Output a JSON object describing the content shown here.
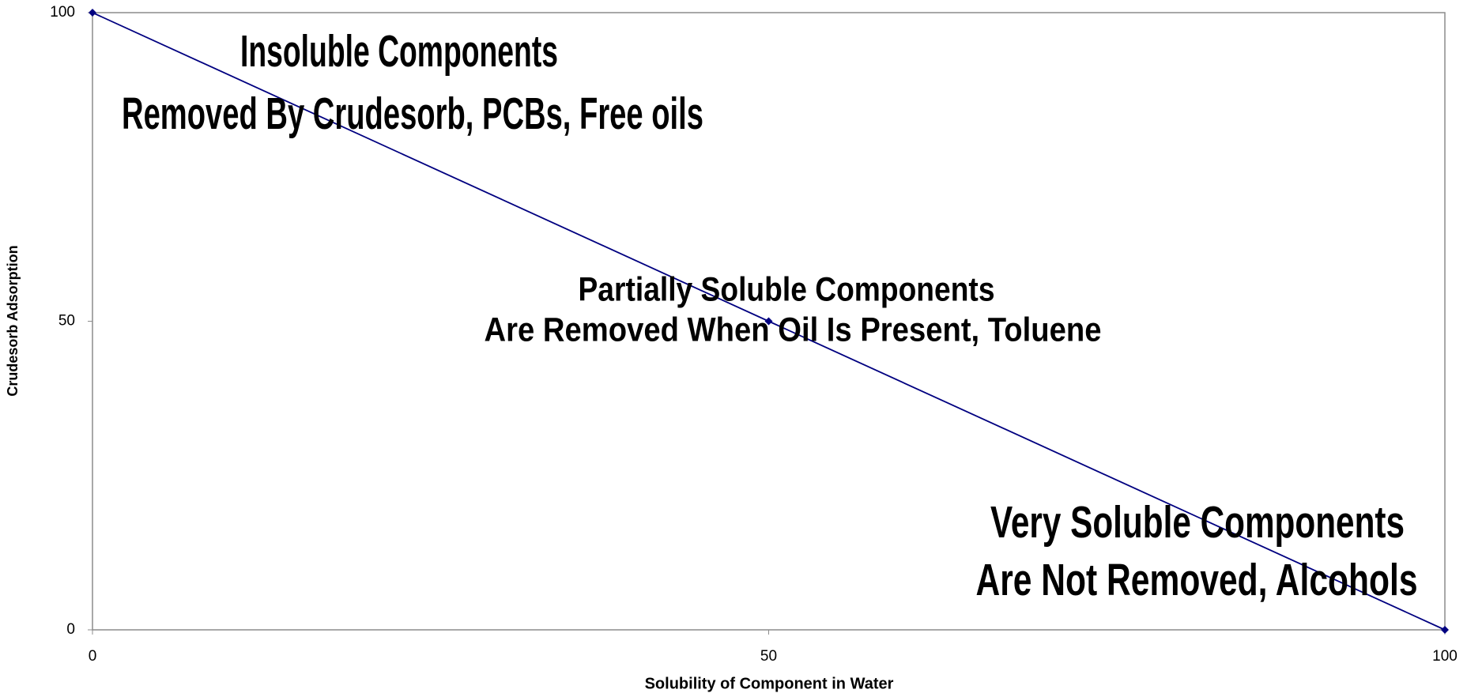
{
  "chart_data": {
    "type": "line",
    "x_label": "Solubility of Component in Water",
    "y_label": "Crudesorb Adsorption",
    "x": [
      0,
      50,
      100
    ],
    "series": [
      {
        "name": "Crudesorb Adsorption",
        "color": "#000080",
        "values": [
          100,
          50,
          0
        ]
      }
    ],
    "xlim": [
      0,
      100
    ],
    "ylim": [
      0,
      100
    ],
    "xticks": [
      0,
      50,
      100
    ],
    "yticks": [
      0,
      50,
      100
    ],
    "annotations": [
      [
        "Insoluble Components",
        "Removed By Crudesorb, PCBs, Free oils"
      ],
      [
        "Partially Soluble Components",
        "Are Removed When Oil Is Present, Toluene"
      ],
      [
        "Very Soluble Components",
        "Are Not Removed, Alcohols"
      ]
    ]
  }
}
